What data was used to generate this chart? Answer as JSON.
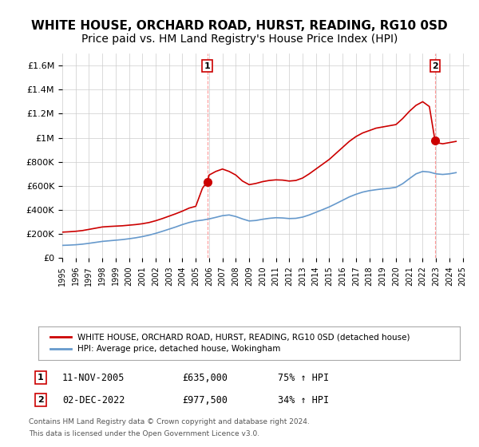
{
  "title": "WHITE HOUSE, ORCHARD ROAD, HURST, READING, RG10 0SD",
  "subtitle": "Price paid vs. HM Land Registry's House Price Index (HPI)",
  "title_fontsize": 11,
  "subtitle_fontsize": 10,
  "ylabel_ticks": [
    "£0",
    "£200K",
    "£400K",
    "£600K",
    "£800K",
    "£1M",
    "£1.2M",
    "£1.4M",
    "£1.6M"
  ],
  "ytick_values": [
    0,
    200000,
    400000,
    600000,
    800000,
    1000000,
    1200000,
    1400000,
    1600000
  ],
  "ylim": [
    0,
    1700000
  ],
  "xlim_start": 1995.0,
  "xlim_end": 2025.5,
  "red_line_color": "#cc0000",
  "blue_line_color": "#6699cc",
  "marker_color": "#cc0000",
  "dashed_line_color": "#ff6666",
  "legend_label_red": "WHITE HOUSE, ORCHARD ROAD, HURST, READING, RG10 0SD (detached house)",
  "legend_label_blue": "HPI: Average price, detached house, Wokingham",
  "transaction1_label": "1",
  "transaction1_date": "11-NOV-2005",
  "transaction1_price": "£635,000",
  "transaction1_hpi": "75% ↑ HPI",
  "transaction1_x": 2005.86,
  "transaction1_y": 635000,
  "transaction2_label": "2",
  "transaction2_date": "02-DEC-2022",
  "transaction2_price": "£977,500",
  "transaction2_hpi": "34% ↑ HPI",
  "transaction2_x": 2022.92,
  "transaction2_y": 977500,
  "footer_line1": "Contains HM Land Registry data © Crown copyright and database right 2024.",
  "footer_line2": "This data is licensed under the Open Government Licence v3.0.",
  "red_x": [
    1995.0,
    1995.5,
    1996.0,
    1996.5,
    1997.0,
    1997.5,
    1998.0,
    1998.5,
    1999.0,
    1999.5,
    2000.0,
    2000.5,
    2001.0,
    2001.5,
    2002.0,
    2002.5,
    2003.0,
    2003.5,
    2004.0,
    2004.5,
    2005.0,
    2005.5,
    2005.86,
    2006.0,
    2006.5,
    2007.0,
    2007.5,
    2008.0,
    2008.5,
    2009.0,
    2009.5,
    2010.0,
    2010.5,
    2011.0,
    2011.5,
    2012.0,
    2012.5,
    2013.0,
    2013.5,
    2014.0,
    2014.5,
    2015.0,
    2015.5,
    2016.0,
    2016.5,
    2017.0,
    2017.5,
    2018.0,
    2018.5,
    2019.0,
    2019.5,
    2020.0,
    2020.5,
    2021.0,
    2021.5,
    2022.0,
    2022.5,
    2022.92,
    2023.0,
    2023.5,
    2024.0,
    2024.5
  ],
  "red_y": [
    215000,
    218000,
    222000,
    228000,
    238000,
    248000,
    258000,
    262000,
    265000,
    268000,
    273000,
    278000,
    285000,
    295000,
    310000,
    328000,
    348000,
    368000,
    390000,
    415000,
    430000,
    580000,
    635000,
    690000,
    720000,
    740000,
    720000,
    690000,
    640000,
    610000,
    620000,
    635000,
    645000,
    650000,
    648000,
    640000,
    645000,
    665000,
    700000,
    740000,
    780000,
    820000,
    870000,
    920000,
    970000,
    1010000,
    1040000,
    1060000,
    1080000,
    1090000,
    1100000,
    1110000,
    1160000,
    1220000,
    1270000,
    1300000,
    1260000,
    977500,
    960000,
    950000,
    960000,
    970000
  ],
  "blue_x": [
    1995.0,
    1995.5,
    1996.0,
    1996.5,
    1997.0,
    1997.5,
    1998.0,
    1998.5,
    1999.0,
    1999.5,
    2000.0,
    2000.5,
    2001.0,
    2001.5,
    2002.0,
    2002.5,
    2003.0,
    2003.5,
    2004.0,
    2004.5,
    2005.0,
    2005.5,
    2006.0,
    2006.5,
    2007.0,
    2007.5,
    2008.0,
    2008.5,
    2009.0,
    2009.5,
    2010.0,
    2010.5,
    2011.0,
    2011.5,
    2012.0,
    2012.5,
    2013.0,
    2013.5,
    2014.0,
    2014.5,
    2015.0,
    2015.5,
    2016.0,
    2016.5,
    2017.0,
    2017.5,
    2018.0,
    2018.5,
    2019.0,
    2019.5,
    2020.0,
    2020.5,
    2021.0,
    2021.5,
    2022.0,
    2022.5,
    2023.0,
    2023.5,
    2024.0,
    2024.5
  ],
  "blue_y": [
    105000,
    107000,
    110000,
    115000,
    122000,
    130000,
    138000,
    143000,
    148000,
    153000,
    160000,
    168000,
    178000,
    190000,
    205000,
    222000,
    240000,
    258000,
    278000,
    295000,
    308000,
    315000,
    325000,
    338000,
    352000,
    358000,
    345000,
    325000,
    308000,
    312000,
    322000,
    330000,
    335000,
    333000,
    328000,
    330000,
    340000,
    358000,
    380000,
    402000,
    425000,
    452000,
    480000,
    508000,
    530000,
    548000,
    560000,
    568000,
    575000,
    580000,
    588000,
    618000,
    660000,
    700000,
    720000,
    715000,
    700000,
    695000,
    700000,
    710000
  ],
  "xtick_years": [
    1995,
    1996,
    1997,
    1998,
    1999,
    2000,
    2001,
    2002,
    2003,
    2004,
    2005,
    2006,
    2007,
    2008,
    2009,
    2010,
    2011,
    2012,
    2013,
    2014,
    2015,
    2016,
    2017,
    2018,
    2019,
    2020,
    2021,
    2022,
    2023,
    2024,
    2025
  ],
  "bg_color": "#ffffff",
  "grid_color": "#cccccc",
  "annotation_box_color": "#cc0000",
  "dashed_vertical_color": "#ff9999"
}
